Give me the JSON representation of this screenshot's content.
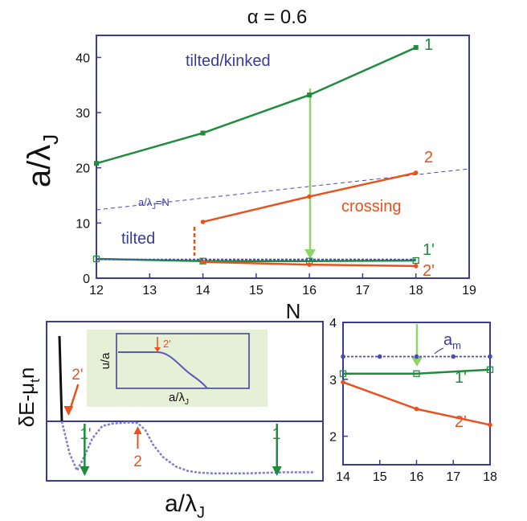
{
  "figure_title": "α = 0.6",
  "colors": {
    "frame": "#3b3b9a",
    "green": "#1e8c3c",
    "light_green": "#8fd46a",
    "orange": "#e8521d",
    "blue_dashed": "#4a4ab8",
    "dark": "#111111",
    "inset_bg": "#e6f0d6"
  },
  "chart_data": [
    {
      "id": "main",
      "type": "line",
      "title": "α = 0.6",
      "xlabel": "N",
      "ylabel": "a/λ_J",
      "ylabel_parts": {
        "main": "a/λ",
        "sub": "J"
      },
      "xlim": [
        12,
        19
      ],
      "ylim": [
        0,
        44
      ],
      "xticks": [
        "12",
        "13",
        "14",
        "15",
        "16",
        "17",
        "18",
        "19"
      ],
      "yticks": [
        "0",
        "10",
        "20",
        "30",
        "40"
      ],
      "series": [
        {
          "name": "1",
          "color": "green",
          "marker": "square-filled",
          "points": [
            [
              12,
              20.8
            ],
            [
              14,
              26.3
            ],
            [
              16,
              33.2
            ],
            [
              18,
              41.8
            ]
          ]
        },
        {
          "name": "2",
          "color": "orange",
          "marker": "dot",
          "points": [
            [
              14,
              10.2
            ],
            [
              16,
              14.8
            ],
            [
              18,
              19.1
            ]
          ]
        },
        {
          "name": "1'",
          "color": "green",
          "marker": "square-open",
          "points": [
            [
              12,
              3.5
            ],
            [
              14,
              3.1
            ],
            [
              16,
              3.1
            ],
            [
              18,
              3.2
            ]
          ]
        },
        {
          "name": "2'",
          "color": "orange",
          "marker": "dot",
          "points": [
            [
              14,
              2.95
            ],
            [
              16,
              2.45
            ],
            [
              18,
              2.2
            ]
          ]
        },
        {
          "name": "a_m",
          "color": "blue_dashed",
          "marker": "none",
          "dashed": true,
          "points": [
            [
              12,
              3.4
            ],
            [
              18,
              3.4
            ]
          ]
        }
      ],
      "reference_line": {
        "label": "a/λ_J=N",
        "label_parts": {
          "main": "a/λ",
          "sub": "J",
          "rest": "=N"
        }
      },
      "annotations": {
        "tilted_kinked": "tilted/kinked",
        "crossing": "crossing",
        "tilted": "tilted"
      },
      "series_labels": [
        "1",
        "2",
        "1'",
        "2'"
      ]
    },
    {
      "id": "energy",
      "type": "line",
      "xlabel": "a/λ_J",
      "xlabel_parts": {
        "main": "a/λ",
        "sub": "J"
      },
      "ylabel": "δE-μ_t n",
      "ylabel_parts": {
        "a": "δE-μ",
        "sub": "t",
        "b": "n"
      },
      "curve_x": [
        0.0,
        0.03,
        0.06,
        0.09,
        0.12,
        0.16,
        0.2,
        0.26,
        0.3,
        0.33,
        0.36,
        0.4,
        0.45,
        0.5,
        0.55,
        0.6,
        0.66,
        0.72,
        0.8,
        0.88,
        1.0
      ],
      "curve_y": [
        0.0,
        -0.55,
        -0.85,
        -0.6,
        -0.3,
        -0.08,
        -0.04,
        -0.02,
        -0.03,
        -0.15,
        -0.4,
        -0.62,
        -0.78,
        -0.86,
        -0.89,
        -0.9,
        -0.9,
        -0.9,
        -0.89,
        -0.88,
        -0.88
      ],
      "markers": [
        {
          "label": "2'",
          "x": 0.02,
          "dir": "down",
          "color": "orange"
        },
        {
          "label": "1'",
          "x": 0.09,
          "dir": "down",
          "color": "green"
        },
        {
          "label": "2",
          "x": 0.3,
          "dir": "up",
          "color": "orange"
        },
        {
          "label": "1",
          "x": 0.85,
          "dir": "down",
          "color": "green"
        }
      ],
      "inset": {
        "ylabel": "u/a",
        "xlabel": "a/λ_J",
        "xlabel_parts": {
          "main": "a/λ",
          "sub": "J"
        },
        "marker_label": "2'"
      }
    },
    {
      "id": "zoom",
      "type": "line",
      "xlim": [
        14,
        18
      ],
      "ylim": [
        1.5,
        4
      ],
      "xticks": [
        "14",
        "15",
        "16",
        "17",
        "18"
      ],
      "yticks": [
        "2",
        "3",
        "4"
      ],
      "series": [
        {
          "name": "a_m",
          "color": "blue_dashed",
          "dashed": true,
          "marker": "dot",
          "points": [
            [
              14,
              3.4
            ],
            [
              15,
              3.4
            ],
            [
              16,
              3.4
            ],
            [
              17,
              3.4
            ],
            [
              18,
              3.4
            ]
          ]
        },
        {
          "name": "1'",
          "color": "green",
          "marker": "square-open",
          "points": [
            [
              14,
              3.1
            ],
            [
              16,
              3.1
            ],
            [
              18,
              3.17
            ]
          ]
        },
        {
          "name": "2'",
          "color": "orange",
          "marker": "dot",
          "points": [
            [
              14,
              2.95
            ],
            [
              16,
              2.48
            ],
            [
              18,
              2.2
            ]
          ]
        }
      ],
      "labels": {
        "a_m": {
          "main": "a",
          "sub": "m"
        },
        "one_prime": "1'",
        "two_prime": "2'"
      }
    }
  ]
}
